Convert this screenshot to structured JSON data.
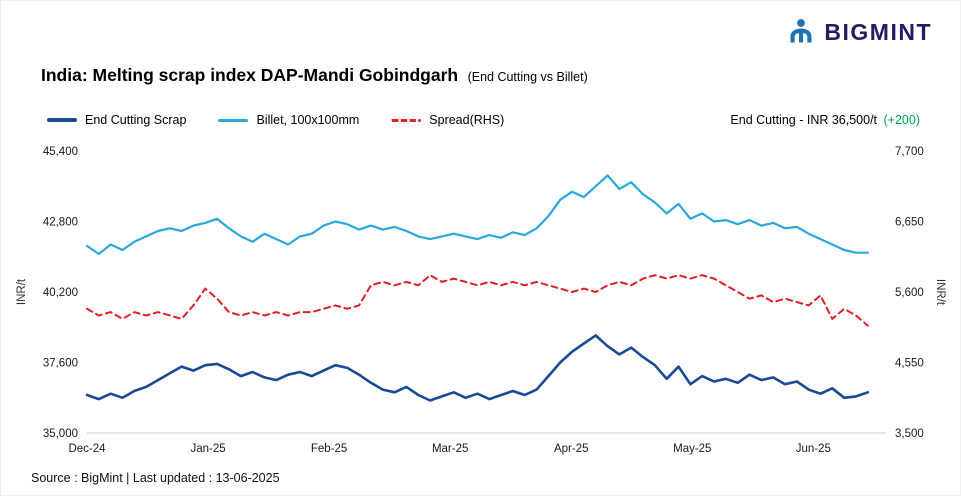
{
  "brand": {
    "name": "BIGMINT",
    "wordmark_color": "#221e62",
    "icon_color": "#1d72b8"
  },
  "title": {
    "main": "India: Melting scrap index DAP-Mandi Gobindgarh",
    "sub": "(End Cutting vs Billet)"
  },
  "header_right": {
    "label": "End Cutting - INR 36,500/t",
    "change": "(+200)",
    "change_color": "#00a14b"
  },
  "footer": {
    "text": "Source : BigMint | Last updated : 13-06-2025"
  },
  "chart_data": {
    "type": "line",
    "title": "India: Melting scrap index DAP-Mandi Gobindgarh (End Cutting vs Billet)",
    "grid": false,
    "legend_position": "top-left",
    "x_axis": {
      "labels": [
        "Dec-24",
        "Jan-25",
        "Feb-25",
        "Mar-25",
        "Apr-25",
        "May-25",
        "Jun-25"
      ],
      "positions": [
        0,
        1,
        2,
        3,
        4,
        5,
        6
      ],
      "range": [
        0,
        6.6
      ]
    },
    "y_left": {
      "label": "INR/t",
      "ticks": [
        35000,
        37600,
        40200,
        42800,
        45400
      ],
      "range": [
        35000,
        45400
      ]
    },
    "y_right": {
      "label": "INR/t",
      "ticks": [
        3500,
        4550,
        5600,
        6650,
        7700
      ],
      "range": [
        3500,
        7700
      ]
    },
    "x_values_range": [
      0,
      6.45
    ],
    "series": [
      {
        "name": "End Cutting Scrap",
        "axis": "left",
        "color": "#1a4a94",
        "dash": false,
        "width": 2.6,
        "values": [
          36400,
          36250,
          36450,
          36300,
          36550,
          36700,
          36950,
          37200,
          37450,
          37300,
          37500,
          37550,
          37350,
          37100,
          37250,
          37050,
          36950,
          37150,
          37250,
          37100,
          37300,
          37500,
          37400,
          37150,
          36850,
          36600,
          36500,
          36700,
          36400,
          36200,
          36350,
          36500,
          36300,
          36450,
          36250,
          36400,
          36550,
          36400,
          36600,
          37100,
          37600,
          38000,
          38300,
          38600,
          38200,
          37900,
          38150,
          37800,
          37500,
          37000,
          37450,
          36800,
          37100,
          36900,
          37000,
          36850,
          37150,
          36950,
          37050,
          36800,
          36900,
          36600,
          36450,
          36650,
          36300,
          36350,
          36500
        ]
      },
      {
        "name": "Billet, 100x100mm",
        "axis": "left",
        "color": "#29a8e0",
        "dash": false,
        "width": 2.2,
        "values": [
          41900,
          41600,
          41950,
          41750,
          42050,
          42250,
          42450,
          42550,
          42450,
          42650,
          42750,
          42900,
          42550,
          42250,
          42050,
          42350,
          42150,
          41950,
          42250,
          42350,
          42650,
          42800,
          42700,
          42500,
          42650,
          42500,
          42600,
          42450,
          42250,
          42150,
          42250,
          42350,
          42250,
          42150,
          42300,
          42200,
          42400,
          42300,
          42550,
          43000,
          43600,
          43900,
          43700,
          44100,
          44500,
          44000,
          44250,
          43800,
          43500,
          43100,
          43450,
          42900,
          43100,
          42800,
          42850,
          42700,
          42850,
          42650,
          42750,
          42550,
          42600,
          42350,
          42150,
          41950,
          41750,
          41650,
          41650
        ]
      },
      {
        "name": "Spread(RHS)",
        "axis": "right",
        "color": "#e01f26",
        "dash": true,
        "width": 2,
        "values": [
          5350,
          5250,
          5300,
          5200,
          5300,
          5250,
          5300,
          5250,
          5200,
          5400,
          5650,
          5500,
          5300,
          5250,
          5300,
          5250,
          5300,
          5250,
          5300,
          5300,
          5350,
          5400,
          5350,
          5400,
          5700,
          5750,
          5700,
          5750,
          5700,
          5850,
          5750,
          5800,
          5750,
          5700,
          5750,
          5700,
          5750,
          5700,
          5750,
          5700,
          5650,
          5600,
          5650,
          5600,
          5700,
          5750,
          5700,
          5800,
          5850,
          5800,
          5850,
          5800,
          5850,
          5800,
          5700,
          5600,
          5500,
          5550,
          5450,
          5500,
          5450,
          5400,
          5550,
          5200,
          5350,
          5250,
          5100
        ]
      }
    ]
  }
}
